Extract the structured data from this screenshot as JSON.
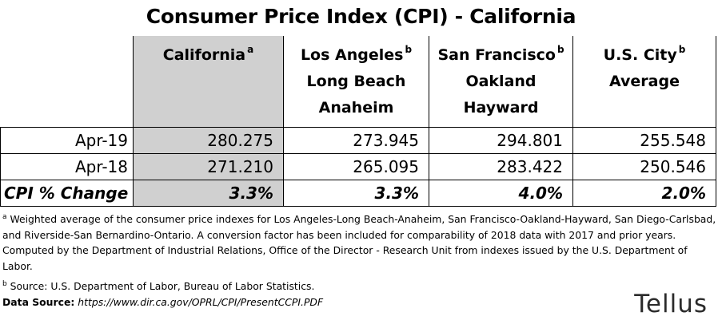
{
  "title": "Consumer Price Index (CPI) - California",
  "chart_data": {
    "type": "table",
    "title": "Consumer Price Index (CPI) - California",
    "columns": [
      {
        "lines": [
          "California"
        ],
        "note": "a"
      },
      {
        "lines": [
          "Los Angeles",
          "Long Beach",
          "Anaheim"
        ],
        "note": "b"
      },
      {
        "lines": [
          "San Francisco",
          "Oakland",
          "Hayward"
        ],
        "note": "b"
      },
      {
        "lines": [
          "U.S. City",
          "Average"
        ],
        "note": "b"
      }
    ],
    "rows": [
      {
        "label": "Apr-19",
        "values": [
          "280.275",
          "273.945",
          "294.801",
          "255.548"
        ]
      },
      {
        "label": "Apr-18",
        "values": [
          "271.210",
          "265.095",
          "283.422",
          "250.546"
        ]
      },
      {
        "label": "CPI % Change",
        "values": [
          "3.3%",
          "3.3%",
          "4.0%",
          "2.0%"
        ]
      }
    ],
    "highlight_color": "#d0d0d0"
  },
  "notes": {
    "a_mark": "a",
    "a_text": "Weighted average of the consumer price indexes for Los Angeles-Long Beach-Anaheim, San Francisco-Oakland-Hayward, San Diego-Carlsbad, and Riverside-San Bernardino-Ontario. A conversion factor has been included for comparability of 2018 data with 2017 and prior years. Computed by the Department of Industrial Relations, Office of the Director - Research Unit from indexes issued by the U.S. Department of Labor.",
    "b_mark": "b",
    "b_text": "Source: U.S. Department of Labor, Bureau of Labor Statistics.",
    "source_label": "Data Source:",
    "source_url": "https://www.dir.ca.gov/OPRL/CPI/PresentCCPI.PDF"
  },
  "logo": "Tellus"
}
